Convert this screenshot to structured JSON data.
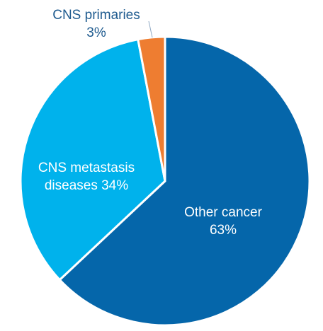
{
  "chart_data": {
    "type": "pie",
    "slices": [
      {
        "name": "Other cancer",
        "value": 63,
        "color": "#0566aa",
        "label_lines": [
          "Other cancer",
          "63%"
        ],
        "label_color": "#ffffff"
      },
      {
        "name": "CNS metastasis diseases",
        "value": 34,
        "color": "#00b2ec",
        "label_lines": [
          "CNS metastasis",
          "diseases 34%"
        ],
        "label_color": "#ffffff"
      },
      {
        "name": "CNS primaries",
        "value": 3,
        "color": "#ee7d31",
        "label_lines": [
          "CNS primaries",
          "3%"
        ],
        "label_color": "#1f5b8f"
      }
    ],
    "start_angle_deg": 0,
    "direction": "clockwise",
    "slice_border_color": "#ffffff",
    "leader_line_color": "#8fa9c4",
    "legend": "none"
  }
}
